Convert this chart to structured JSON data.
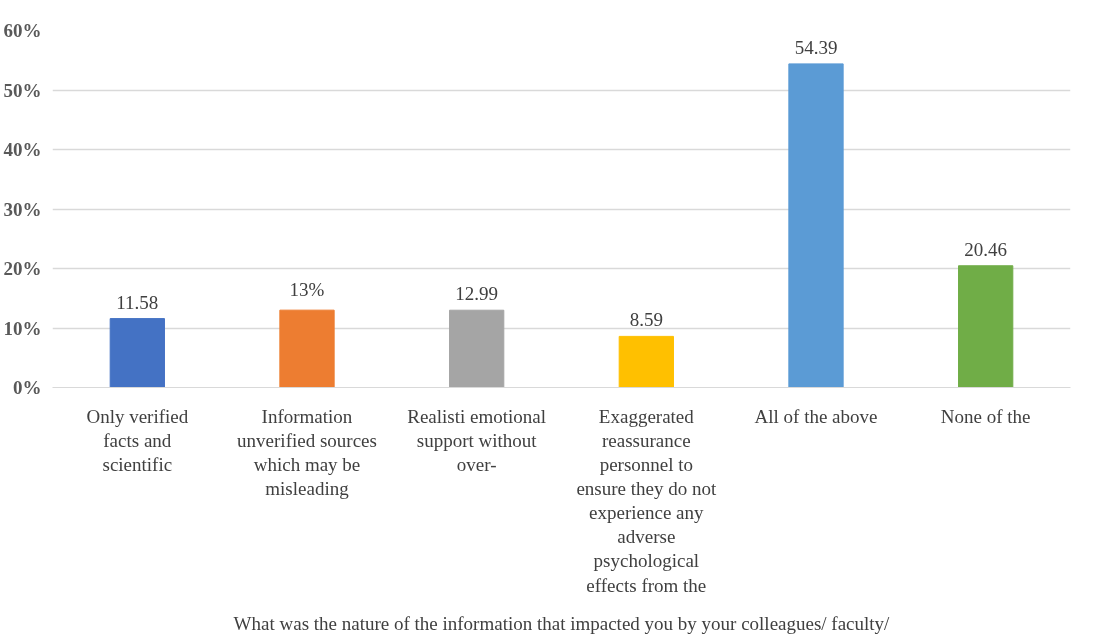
{
  "chart_data": {
    "type": "bar",
    "xlabel": "What was the nature of the information that impacted you by your colleagues/ faculty/",
    "categories": [
      "Only verified facts and scientific",
      "Information unverified sources which may be misleading",
      "Realisti emotional support without over-",
      "Exaggerated reassurance personnel to ensure they do not experience any adverse psychological effects from the",
      "All of the above",
      "None of the"
    ],
    "values": [
      11.58,
      13,
      12.99,
      8.59,
      54.39,
      20.46
    ],
    "colors": [
      "#4472c4",
      "#ed7d31",
      "#a5a5a5",
      "#ffc000",
      "#5b9bd5",
      "#70ad47"
    ],
    "value_labels": [
      "11.58",
      "13%",
      "12.99",
      "8.59",
      "54.39",
      "20.46"
    ],
    "ylim": [
      0,
      60
    ],
    "yticks": [
      {
        "value": 0,
        "label": "0%"
      },
      {
        "value": 10,
        "label": "10%"
      },
      {
        "value": 20,
        "label": "20%"
      },
      {
        "value": 30,
        "label": "30%"
      },
      {
        "value": 40,
        "label": "40%"
      },
      {
        "value": 50,
        "label": "50%"
      },
      {
        "value": 60,
        "label": "60%"
      }
    ],
    "grid": "y"
  }
}
